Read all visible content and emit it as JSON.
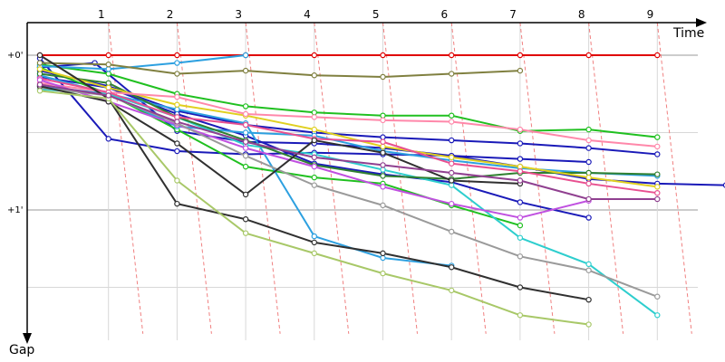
{
  "chart_data": {
    "type": "line",
    "xlabel": "Time",
    "ylabel": "Gap",
    "x_categories": [
      "1",
      "2",
      "3",
      "4",
      "5",
      "6",
      "7",
      "8",
      "9"
    ],
    "y_tick_labels": [
      "+0'",
      "+1'"
    ],
    "grid": true,
    "lap_marker_color": "#f08080",
    "series": [
      {
        "color": "#e00000",
        "points": [
          [
            0,
            0
          ],
          [
            1,
            0
          ],
          [
            2,
            0
          ],
          [
            3,
            0
          ],
          [
            4,
            0
          ],
          [
            5,
            0
          ],
          [
            6,
            0
          ],
          [
            7,
            0
          ],
          [
            8,
            0
          ],
          [
            9,
            0
          ]
        ]
      },
      {
        "color": "#1a1ab8",
        "points": [
          [
            0,
            0.02
          ],
          [
            1,
            0.54
          ],
          [
            2,
            0.62
          ],
          [
            3,
            0.64
          ],
          [
            4,
            0.63
          ],
          [
            5,
            0.64
          ],
          [
            6,
            0.65
          ],
          [
            7,
            0.67
          ],
          [
            8,
            0.69
          ]
        ]
      },
      {
        "color": "#1a1ab8",
        "points": [
          [
            0,
            0.08
          ],
          [
            0.8,
            0.05
          ],
          [
            2,
            0.49
          ],
          [
            3,
            0.56
          ],
          [
            4,
            0.57
          ],
          [
            5,
            0.6
          ],
          [
            6,
            0.65
          ],
          [
            7,
            0.72
          ],
          [
            8,
            0.8
          ],
          [
            9,
            0.83
          ],
          [
            10,
            0.84
          ]
        ]
      },
      {
        "color": "#1a1ab8",
        "points": [
          [
            0,
            0.1
          ],
          [
            1,
            0.2
          ],
          [
            2,
            0.36
          ],
          [
            3,
            0.45
          ],
          [
            4,
            0.5
          ],
          [
            5,
            0.53
          ],
          [
            6,
            0.55
          ],
          [
            7,
            0.57
          ],
          [
            8,
            0.6
          ],
          [
            9,
            0.64
          ]
        ]
      },
      {
        "color": "#1a1ab8",
        "points": [
          [
            0,
            0.14
          ],
          [
            1,
            0.21
          ],
          [
            2,
            0.38
          ],
          [
            3,
            0.52
          ],
          [
            4,
            0.7
          ],
          [
            5,
            0.77
          ],
          [
            6,
            0.82
          ],
          [
            7,
            0.95
          ],
          [
            8,
            1.05
          ]
        ]
      },
      {
        "color": "#20c020",
        "points": [
          [
            0,
            0.06
          ],
          [
            1,
            0.12
          ],
          [
            2,
            0.25
          ],
          [
            3,
            0.33
          ],
          [
            4,
            0.37
          ],
          [
            5,
            0.39
          ],
          [
            6,
            0.39
          ],
          [
            7,
            0.49
          ],
          [
            8,
            0.48
          ],
          [
            9,
            0.53
          ]
        ]
      },
      {
        "color": "#20c020",
        "points": [
          [
            0,
            0.08
          ],
          [
            1,
            0.25
          ],
          [
            2,
            0.48
          ],
          [
            3,
            0.72
          ],
          [
            4,
            0.79
          ],
          [
            5,
            0.83
          ],
          [
            6,
            0.97
          ],
          [
            7,
            1.1
          ]
        ]
      },
      {
        "color": "#2da0e0",
        "points": [
          [
            0,
            0.07
          ],
          [
            1,
            0.09
          ],
          [
            2,
            0.05
          ],
          [
            3,
            0.0
          ]
        ]
      },
      {
        "color": "#2da0e0",
        "points": [
          [
            0,
            0.2
          ],
          [
            1,
            0.25
          ],
          [
            2,
            0.46
          ],
          [
            3,
            0.5
          ],
          [
            4,
            0.52
          ],
          [
            5,
            0.62
          ],
          [
            6,
            0.68
          ],
          [
            7,
            0.73
          ],
          [
            8,
            0.76
          ],
          [
            9,
            0.78
          ]
        ]
      },
      {
        "color": "#2da0e0",
        "points": [
          [
            0,
            0.13
          ],
          [
            1,
            0.25
          ],
          [
            2,
            0.35
          ],
          [
            3,
            0.44
          ],
          [
            4,
            1.17
          ],
          [
            5,
            1.31
          ],
          [
            6,
            1.36
          ]
        ]
      },
      {
        "color": "#2ecece",
        "points": [
          [
            0,
            0.22
          ],
          [
            1,
            0.25
          ],
          [
            2,
            0.4
          ],
          [
            3,
            0.58
          ],
          [
            4,
            0.64
          ],
          [
            5,
            0.74
          ],
          [
            6,
            0.84
          ],
          [
            7,
            1.18
          ],
          [
            8,
            1.35
          ],
          [
            9,
            1.68
          ]
        ]
      },
      {
        "color": "#808040",
        "points": [
          [
            0,
            0.05
          ],
          [
            1,
            0.06
          ],
          [
            2,
            0.12
          ],
          [
            3,
            0.1
          ],
          [
            4,
            0.13
          ],
          [
            5,
            0.14
          ],
          [
            6,
            0.12
          ],
          [
            7,
            0.1
          ]
        ]
      },
      {
        "color": "#308030",
        "points": [
          [
            0,
            0.12
          ],
          [
            1,
            0.18
          ],
          [
            2,
            0.4
          ],
          [
            3,
            0.55
          ],
          [
            4,
            0.71
          ],
          [
            5,
            0.78
          ],
          [
            6,
            0.8
          ],
          [
            7,
            0.76
          ],
          [
            8,
            0.76
          ],
          [
            9,
            0.77
          ]
        ]
      },
      {
        "color": "#e0d020",
        "points": [
          [
            0,
            0.09
          ],
          [
            1,
            0.21
          ],
          [
            2,
            0.32
          ],
          [
            3,
            0.39
          ],
          [
            4,
            0.48
          ],
          [
            5,
            0.59
          ],
          [
            6,
            0.66
          ],
          [
            7,
            0.72
          ],
          [
            8,
            0.79
          ],
          [
            9,
            0.85
          ]
        ]
      },
      {
        "color": "#ff88aa",
        "points": [
          [
            0,
            0.18
          ],
          [
            1,
            0.24
          ],
          [
            2,
            0.27
          ],
          [
            3,
            0.38
          ],
          [
            4,
            0.4
          ],
          [
            5,
            0.42
          ],
          [
            6,
            0.43
          ],
          [
            7,
            0.48
          ],
          [
            8,
            0.55
          ],
          [
            9,
            0.59
          ]
        ]
      },
      {
        "color": "#e85090",
        "points": [
          [
            0,
            0.15
          ],
          [
            1,
            0.24
          ],
          [
            2,
            0.4
          ],
          [
            3,
            0.45
          ],
          [
            4,
            0.54
          ],
          [
            5,
            0.56
          ],
          [
            6,
            0.7
          ],
          [
            7,
            0.75
          ],
          [
            8,
            0.83
          ],
          [
            9,
            0.89
          ]
        ]
      },
      {
        "color": "#c050e0",
        "points": [
          [
            0,
            0.16
          ],
          [
            1,
            0.3
          ],
          [
            2,
            0.45
          ],
          [
            3,
            0.6
          ],
          [
            4,
            0.72
          ],
          [
            5,
            0.85
          ],
          [
            6,
            0.96
          ],
          [
            7,
            1.05
          ],
          [
            8,
            0.94
          ]
        ]
      },
      {
        "color": "#9a9a9a",
        "points": [
          [
            0,
            0.21
          ],
          [
            1,
            0.26
          ],
          [
            2,
            0.44
          ],
          [
            3,
            0.65
          ],
          [
            4,
            0.84
          ],
          [
            5,
            0.97
          ],
          [
            6,
            1.14
          ],
          [
            7,
            1.3
          ],
          [
            8,
            1.39
          ],
          [
            9,
            1.56
          ]
        ]
      },
      {
        "color": "#303030",
        "points": [
          [
            0,
            0.0
          ],
          [
            1,
            0.28
          ],
          [
            2,
            0.96
          ],
          [
            3,
            1.06
          ],
          [
            4,
            1.21
          ],
          [
            5,
            1.28
          ],
          [
            6,
            1.37
          ],
          [
            7,
            1.5
          ],
          [
            8,
            1.58
          ]
        ]
      },
      {
        "color": "#303030",
        "points": [
          [
            0,
            0.2
          ],
          [
            1,
            0.3
          ],
          [
            2,
            0.57
          ],
          [
            3,
            0.9
          ],
          [
            4,
            0.55
          ],
          [
            5,
            0.63
          ],
          [
            6,
            0.81
          ],
          [
            7,
            0.83
          ]
        ]
      },
      {
        "color": "#a8c868",
        "points": [
          [
            0,
            0.23
          ],
          [
            1,
            0.28
          ],
          [
            2,
            0.81
          ],
          [
            3,
            1.15
          ],
          [
            4,
            1.28
          ],
          [
            5,
            1.41
          ],
          [
            6,
            1.52
          ],
          [
            7,
            1.68
          ],
          [
            8,
            1.74
          ]
        ]
      },
      {
        "color": "#904090",
        "points": [
          [
            0,
            0.19
          ],
          [
            1,
            0.26
          ],
          [
            2,
            0.43
          ],
          [
            3,
            0.56
          ],
          [
            4,
            0.66
          ],
          [
            5,
            0.71
          ],
          [
            6,
            0.76
          ],
          [
            7,
            0.81
          ],
          [
            8,
            0.93
          ],
          [
            9,
            0.93
          ]
        ]
      }
    ]
  }
}
